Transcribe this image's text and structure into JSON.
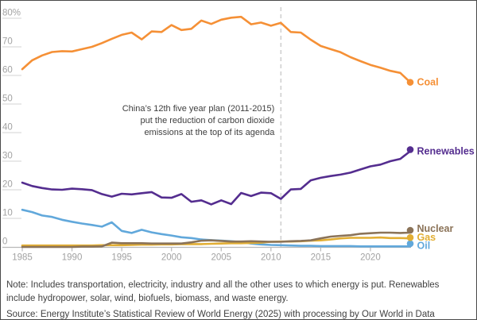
{
  "frame": {
    "background": "#ffffff",
    "border_color": "#4a4a4a"
  },
  "chart_data": {
    "type": "line",
    "title": "",
    "unit": "%",
    "xlim": [
      1985,
      2024
    ],
    "ylim": [
      0,
      80
    ],
    "x_ticks": [
      1985,
      1990,
      1995,
      2000,
      2005,
      2010,
      2015,
      2020
    ],
    "y_ticks": [
      0,
      10,
      20,
      30,
      40,
      50,
      60,
      70,
      80
    ],
    "y_top_tick_label": "80%",
    "grid": "left-stub-ticks-only",
    "legend_position": "right-end-labels",
    "years": [
      1985,
      1986,
      1987,
      1988,
      1989,
      1990,
      1991,
      1992,
      1993,
      1994,
      1995,
      1996,
      1997,
      1998,
      1999,
      2000,
      2001,
      2002,
      2003,
      2004,
      2005,
      2006,
      2007,
      2008,
      2009,
      2010,
      2011,
      2012,
      2013,
      2014,
      2015,
      2016,
      2017,
      2018,
      2019,
      2020,
      2021,
      2022,
      2023,
      2024
    ],
    "series": [
      {
        "name": "Oil",
        "color": "#61a8db",
        "label_dy": -1,
        "dot_dy": -3.5,
        "values": [
          13,
          12.2,
          11,
          10.5,
          9.5,
          8.8,
          8.2,
          7.7,
          7.1,
          8.6,
          5.6,
          4.9,
          6,
          5.1,
          4.5,
          4,
          3.4,
          3.1,
          2.6,
          2.4,
          2.2,
          2,
          1.7,
          1.2,
          0.9,
          0.7,
          0.6,
          0.5,
          0.4,
          0.4,
          0.3,
          0.3,
          0.3,
          0.3,
          0.2,
          0.2,
          0.2,
          0.2,
          0.2,
          0.2
        ]
      },
      {
        "name": "Gas",
        "color": "#e2ae33",
        "label_dy": -1,
        "dot_dy": -1,
        "values": [
          0.5,
          0.5,
          0.5,
          0.5,
          0.5,
          0.5,
          0.5,
          0.5,
          0.6,
          0.6,
          0.6,
          0.7,
          0.8,
          0.8,
          0.9,
          0.9,
          1,
          1,
          1,
          1.1,
          1.2,
          1.3,
          1.3,
          1.4,
          1.5,
          1.8,
          1.9,
          1.9,
          2,
          2.2,
          2.3,
          2.6,
          3,
          3.2,
          3.2,
          3.2,
          3.3,
          3.1,
          3.1,
          3
        ]
      },
      {
        "name": "Nuclear",
        "color": "#8b7358",
        "label_dy": -5,
        "dot_dy": -3,
        "values": [
          0,
          0,
          0,
          0,
          0,
          0,
          0.1,
          0.1,
          0.2,
          1.5,
          1.3,
          1.3,
          1.3,
          1.2,
          1.2,
          1.2,
          1.2,
          1.6,
          2.2,
          2.3,
          2.1,
          1.9,
          1.9,
          2,
          1.9,
          1.8,
          1.8,
          2,
          2.1,
          2.3,
          3,
          3.6,
          3.9,
          4.1,
          4.6,
          4.8,
          5,
          5,
          4.9,
          5
        ]
      },
      {
        "name": "Renewables",
        "color": "#542d8f",
        "label_dy": 0,
        "dot_dy": -2,
        "values": [
          22.5,
          21.3,
          20.6,
          20.1,
          20,
          20.4,
          20.2,
          19.9,
          18.5,
          17.6,
          18.6,
          18.4,
          18.8,
          19.2,
          17.3,
          17.2,
          18.5,
          15.8,
          16.3,
          14.9,
          16.3,
          15,
          18.9,
          17.8,
          19,
          18.8,
          16.8,
          20.1,
          20.3,
          23.3,
          24.2,
          24.8,
          25.3,
          26,
          27.1,
          28.2,
          28.8,
          30,
          30.8,
          33.5
        ]
      },
      {
        "name": "Coal",
        "color": "#f59036",
        "label_dy": 0,
        "dot_dy": 0,
        "values": [
          62.2,
          65.3,
          67,
          68.2,
          68.5,
          68.4,
          69.2,
          70,
          71.3,
          72.8,
          74.2,
          75,
          72.6,
          75.4,
          75.2,
          77.6,
          75.9,
          76.3,
          79.2,
          78,
          79.5,
          80.2,
          80.5,
          77.9,
          78.5,
          77.4,
          78.4,
          75.2,
          75,
          72.5,
          70.3,
          69.2,
          68.1,
          66.4,
          65,
          63.7,
          62.7,
          61.6,
          60.9,
          57.6
        ]
      }
    ],
    "annotation": {
      "at_year": 2011,
      "dashed_line": true,
      "lines": [
        "China’s 12th five year plan (2011-2015)",
        "put the reduction of carbon dioxide",
        "emissions at the top of its agenda"
      ]
    },
    "colors": {
      "axis_text": "#a2a2a2",
      "tick_stub": "#dcdcdc",
      "axis_line": "#b9b9b9",
      "dashed_line": "#cdcdcd",
      "annotation_text": "#3e3e3e"
    }
  },
  "footer": {
    "note": "Note: Includes transportation, electricity, industry and all the other uses to which energy is put. Renewables include hydropower, solar, wind, biofuels, biomass, and waste energy.",
    "source": "Source: Energy Institute’s Statistical Review of World Energy (2025) with processing by Our World in Data"
  }
}
